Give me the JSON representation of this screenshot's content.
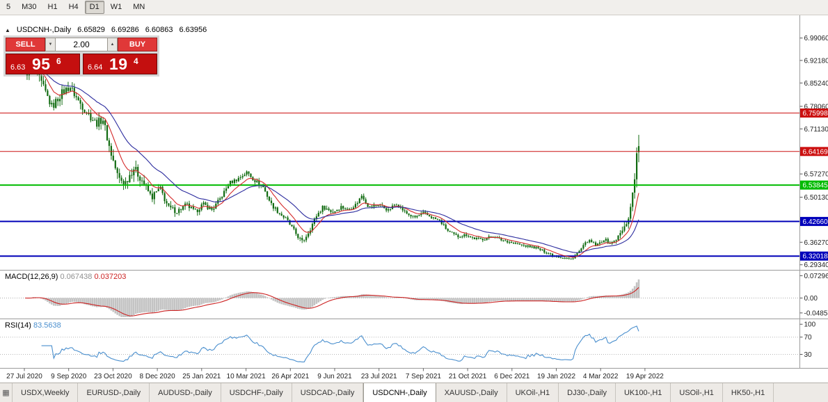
{
  "toolbar": {
    "timeframes": [
      {
        "label": "5",
        "active": false
      },
      {
        "label": "M30",
        "active": false
      },
      {
        "label": "H1",
        "active": false
      },
      {
        "label": "H4",
        "active": false
      },
      {
        "label": "D1",
        "active": true
      },
      {
        "label": "W1",
        "active": false
      },
      {
        "label": "MN",
        "active": false
      }
    ]
  },
  "chart_header": {
    "direction_icon": "▲",
    "title": "USDCNH-,Daily",
    "open": "6.65829",
    "high": "6.69286",
    "low": "6.60863",
    "close": "6.63956"
  },
  "trade_panel": {
    "sell_label": "SELL",
    "buy_label": "BUY",
    "volume": "2.00",
    "sell_price": {
      "small": "6.63",
      "big": "95",
      "sup": "6"
    },
    "buy_price": {
      "small": "6.64",
      "big": "19",
      "sup": "4"
    }
  },
  "indicators": {
    "macd": {
      "label": "MACD(12,26,9)",
      "main_value": "0.067438",
      "signal_value": "0.037203"
    },
    "rsi": {
      "label": "RSI(14)",
      "value": "83.5638"
    }
  },
  "price_axis": {
    "ticks": [
      "6.99060",
      "6.92180",
      "6.85240",
      "6.78060",
      "6.71130",
      "6.57270",
      "6.50130",
      "6.36270",
      "6.29340"
    ],
    "badges": [
      {
        "value": "6.75998",
        "color": "#cc1111"
      },
      {
        "value": "6.64169",
        "color": "#cc1111"
      },
      {
        "value": "6.53845",
        "color": "#00bb00"
      },
      {
        "value": "6.42660",
        "color": "#0000bb"
      },
      {
        "value": "6.32018",
        "color": "#0000bb"
      }
    ]
  },
  "macd_axis": [
    "0.072963",
    "0.00",
    "-0.04857"
  ],
  "rsi_axis": [
    "100",
    "70",
    "30"
  ],
  "dates": [
    "27 Jul 2020",
    "9 Sep 2020",
    "23 Oct 2020",
    "8 Dec 2020",
    "25 Jan 2021",
    "10 Mar 2021",
    "26 Apr 2021",
    "9 Jun 2021",
    "23 Jul 2021",
    "7 Sep 2021",
    "21 Oct 2021",
    "6 Dec 2021",
    "19 Jan 2022",
    "4 Mar 2022",
    "19 Apr 2022"
  ],
  "tabs": {
    "items": [
      "USDX,Weekly",
      "EURUSD-,Daily",
      "AUDUSD-,Daily",
      "USDCHF-,Daily",
      "USDCAD-,Daily",
      "USDCNH-,Daily",
      "XAUUSD-,Daily",
      "UKOil-,H1",
      "DJ30-,Daily",
      "UK100-,H1",
      "USOil-,H1",
      "HK50-,H1"
    ],
    "active": "USDCNH-,Daily",
    "scroll_icon": "▦"
  },
  "chart_data": {
    "type": "candlestick",
    "symbol": "USDCNH",
    "timeframe": "Daily",
    "title": "USDCNH-,Daily",
    "visible_range": {
      "first_date": "27 Jul 2020",
      "last_date": "19 Apr 2022"
    },
    "ohlc_current": {
      "open": 6.65829,
      "high": 6.69286,
      "low": 6.60863,
      "close": 6.63956
    },
    "y_range": [
      6.282,
      7.005
    ],
    "n_bars": 300,
    "candle_color": "#116b11",
    "price_path": [
      [
        0.0,
        6.88
      ],
      [
        0.014,
        6.905
      ],
      [
        0.027,
        6.85
      ],
      [
        0.044,
        6.778
      ],
      [
        0.059,
        6.82
      ],
      [
        0.073,
        6.842
      ],
      [
        0.086,
        6.8
      ],
      [
        0.101,
        6.762
      ],
      [
        0.116,
        6.728
      ],
      [
        0.127,
        6.742
      ],
      [
        0.138,
        6.65
      ],
      [
        0.152,
        6.56
      ],
      [
        0.163,
        6.545
      ],
      [
        0.177,
        6.592
      ],
      [
        0.192,
        6.55
      ],
      [
        0.206,
        6.5
      ],
      [
        0.22,
        6.528
      ],
      [
        0.234,
        6.468
      ],
      [
        0.248,
        6.458
      ],
      [
        0.263,
        6.478
      ],
      [
        0.277,
        6.455
      ],
      [
        0.29,
        6.48
      ],
      [
        0.305,
        6.462
      ],
      [
        0.32,
        6.502
      ],
      [
        0.333,
        6.545
      ],
      [
        0.347,
        6.558
      ],
      [
        0.362,
        6.578
      ],
      [
        0.373,
        6.555
      ],
      [
        0.388,
        6.532
      ],
      [
        0.401,
        6.48
      ],
      [
        0.413,
        6.455
      ],
      [
        0.426,
        6.432
      ],
      [
        0.441,
        6.39
      ],
      [
        0.452,
        6.362
      ],
      [
        0.464,
        6.402
      ],
      [
        0.475,
        6.445
      ],
      [
        0.486,
        6.472
      ],
      [
        0.501,
        6.455
      ],
      [
        0.515,
        6.472
      ],
      [
        0.526,
        6.462
      ],
      [
        0.54,
        6.48
      ],
      [
        0.549,
        6.508
      ],
      [
        0.56,
        6.47
      ],
      [
        0.577,
        6.48
      ],
      [
        0.592,
        6.46
      ],
      [
        0.605,
        6.483
      ],
      [
        0.619,
        6.455
      ],
      [
        0.634,
        6.438
      ],
      [
        0.649,
        6.452
      ],
      [
        0.662,
        6.44
      ],
      [
        0.676,
        6.428
      ],
      [
        0.69,
        6.395
      ],
      [
        0.705,
        6.38
      ],
      [
        0.719,
        6.386
      ],
      [
        0.732,
        6.374
      ],
      [
        0.747,
        6.372
      ],
      [
        0.762,
        6.382
      ],
      [
        0.776,
        6.37
      ],
      [
        0.789,
        6.364
      ],
      [
        0.804,
        6.356
      ],
      [
        0.819,
        6.35
      ],
      [
        0.832,
        6.346
      ],
      [
        0.846,
        6.334
      ],
      [
        0.861,
        6.323
      ],
      [
        0.875,
        6.316
      ],
      [
        0.889,
        6.31
      ],
      [
        0.902,
        6.332
      ],
      [
        0.917,
        6.368
      ],
      [
        0.932,
        6.352
      ],
      [
        0.943,
        6.372
      ],
      [
        0.955,
        6.358
      ],
      [
        0.966,
        6.378
      ],
      [
        0.977,
        6.408
      ],
      [
        0.986,
        6.458
      ],
      [
        0.993,
        6.562
      ],
      [
        0.997,
        6.63
      ],
      [
        1.0,
        6.64
      ]
    ],
    "volatility_path": [
      [
        0.0,
        0.03
      ],
      [
        0.1,
        0.026
      ],
      [
        0.18,
        0.03
      ],
      [
        0.25,
        0.018
      ],
      [
        0.32,
        0.014
      ],
      [
        0.4,
        0.014
      ],
      [
        0.47,
        0.016
      ],
      [
        0.55,
        0.011
      ],
      [
        0.62,
        0.011
      ],
      [
        0.7,
        0.01
      ],
      [
        0.8,
        0.008
      ],
      [
        0.9,
        0.009
      ],
      [
        0.96,
        0.012
      ],
      [
        0.99,
        0.03
      ],
      [
        1.0,
        0.04
      ]
    ],
    "levels": [
      {
        "value": 6.75998,
        "color": "#cc1111",
        "width": 1
      },
      {
        "value": 6.64169,
        "color": "#cc1111",
        "width": 1
      },
      {
        "value": 6.53845,
        "color": "#00bb00",
        "width": 2
      },
      {
        "value": 6.4266,
        "color": "#0000b8",
        "width": 2
      },
      {
        "value": 6.32018,
        "color": "#0000b8",
        "width": 2
      }
    ],
    "overlays": [
      {
        "name": "ma-fast",
        "type": "ema",
        "period": 10,
        "color": "#d42a2a"
      },
      {
        "name": "ma-slow",
        "type": "ema",
        "period": 28,
        "color": "#2b2b9e"
      }
    ],
    "macd": {
      "params": [
        12,
        26,
        9
      ],
      "current_main": 0.067438,
      "current_signal": 0.037203,
      "range": [
        -0.0625,
        0.0875
      ],
      "histogram_color": "#c3c3c3",
      "signal_color": "#cc2222"
    },
    "rsi": {
      "period": 14,
      "current": 83.5638,
      "range": [
        0,
        110
      ],
      "levels": [
        70,
        30
      ],
      "color": "#4a8fce"
    }
  }
}
